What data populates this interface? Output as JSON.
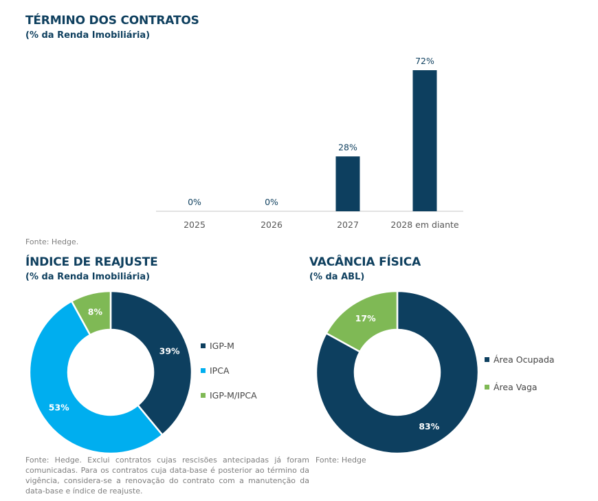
{
  "colors": {
    "dark_blue": "#0d3f5f",
    "light_blue": "#00aeef",
    "green": "#7fb955",
    "title": "#0e3f5e",
    "axis": "#d9d9d9",
    "tick_text": "#555555"
  },
  "sections": {
    "contracts": {
      "title": "TÉRMINO DOS CONTRATOS",
      "subtitle": "(% da Renda Imobiliária)",
      "source": "Fonte: Hedge."
    },
    "readjust": {
      "title": "ÍNDICE DE REAJUSTE",
      "subtitle": "(% da Renda Imobiliária)",
      "source": "Fonte: Hedge. Exclui contratos cujas rescisões antecipadas já foram comunicadas. Para os contratos cuja data-base é posterior ao término da vigência, considera-se a renovação do contrato com a manutenção da data-base e índice de reajuste."
    },
    "vacancy": {
      "title": "VACÂNCIA FÍSICA",
      "subtitle": "(% da ABL)",
      "source": "Fonte: Hedge"
    }
  },
  "chart_data": [
    {
      "type": "bar",
      "title": "TÉRMINO DOS CONTRATOS",
      "subtitle": "(% da Renda Imobiliária)",
      "categories": [
        "2025",
        "2026",
        "2027",
        "2028 em diante"
      ],
      "values": [
        0,
        0,
        28,
        72
      ],
      "data_labels": [
        "0%",
        "0%",
        "28%",
        "72%"
      ],
      "xlabel": "",
      "ylabel": "",
      "ylim": [
        0,
        72
      ],
      "grid": false,
      "color": "#0d3f5f"
    },
    {
      "type": "pie",
      "donut": true,
      "title": "ÍNDICE DE REAJUSTE",
      "subtitle": "(% da Renda Imobiliária)",
      "labels": [
        "IGP-M",
        "IPCA",
        "IGP-M/IPCA"
      ],
      "values": [
        39,
        53,
        8
      ],
      "data_labels": [
        "39%",
        "53%",
        "8%"
      ],
      "colors": [
        "#0d3f5f",
        "#00aeef",
        "#7fb955"
      ],
      "legend": "right"
    },
    {
      "type": "pie",
      "donut": true,
      "title": "VACÂNCIA FÍSICA",
      "subtitle": "(% da ABL)",
      "labels": [
        "Área Ocupada",
        "Área Vaga"
      ],
      "values": [
        83,
        17
      ],
      "data_labels": [
        "83%",
        "17%"
      ],
      "colors": [
        "#0d3f5f",
        "#7fb955"
      ],
      "legend": "right"
    }
  ]
}
